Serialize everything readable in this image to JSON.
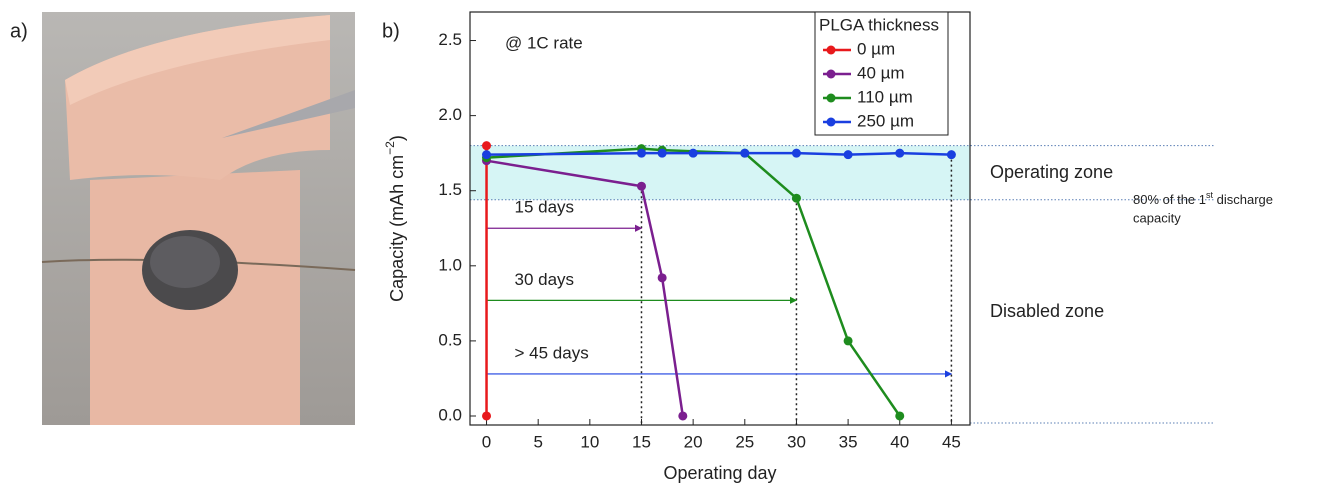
{
  "panels": [
    "a)",
    "b)"
  ],
  "chart_data": {
    "type": "line",
    "x_label": "Operating day",
    "y_label": "Capacity (mAh cm",
    "y_label_sup": "−2",
    "y_label_end": ")",
    "xlim": [
      -1.6,
      46.8
    ],
    "ylim": [
      -0.06,
      2.69
    ],
    "xticks": [
      0,
      5,
      10,
      15,
      20,
      25,
      30,
      35,
      40,
      45
    ],
    "yticks": [
      {
        "value": 0,
        "label": "0.0"
      },
      0.5,
      {
        "value": 1,
        "label": "1.0"
      },
      1.5,
      {
        "value": 2,
        "label": "2.0"
      },
      2.5
    ],
    "legend_title": "PLGA thickness",
    "legend_position": "top-right",
    "series": [
      {
        "name": "0 µm",
        "color": "#e8191c",
        "x": [
          0,
          0
        ],
        "values": [
          1.8,
          0
        ]
      },
      {
        "name": "40 µm",
        "color": "#7b1f8f",
        "x": [
          0,
          15,
          17,
          19
        ],
        "values": [
          1.7,
          1.53,
          0.92,
          0
        ]
      },
      {
        "name": "110 µm",
        "color": "#1e8c1e",
        "x": [
          0,
          15,
          17,
          25,
          30,
          35,
          40
        ],
        "values": [
          1.72,
          1.78,
          1.77,
          1.75,
          1.45,
          0.5,
          0
        ]
      },
      {
        "name": "250 µm",
        "color": "#1a3fe0",
        "x": [
          0,
          15,
          17,
          20,
          25,
          30,
          35,
          40,
          45
        ],
        "values": [
          1.74,
          1.75,
          1.75,
          1.75,
          1.75,
          1.75,
          1.74,
          1.75,
          1.74
        ]
      }
    ],
    "zone_band": [
      1.44,
      1.8
    ],
    "zone_color": "#d6f5f5",
    "arrows": [
      {
        "label": "15 days",
        "color": "#7b1f8f",
        "y": 1.25,
        "x_end": 15,
        "drop_y": 1.53
      },
      {
        "label": "30 days",
        "color": "#1e8c1e",
        "y": 0.77,
        "x_end": 30,
        "drop_y": 1.45
      },
      {
        "label": "> 45 days",
        "color": "#1a3fe0",
        "y": 0.28,
        "x_end": 45,
        "drop_y": 1.74
      }
    ],
    "annotations": {
      "rate": "@ 1C rate",
      "operating": "Operating zone",
      "disabled": "Disabled zone",
      "threshold_1": "80% of the 1",
      "threshold_sup": "st",
      "threshold_2": " discharge",
      "threshold_3": "capacity"
    }
  }
}
